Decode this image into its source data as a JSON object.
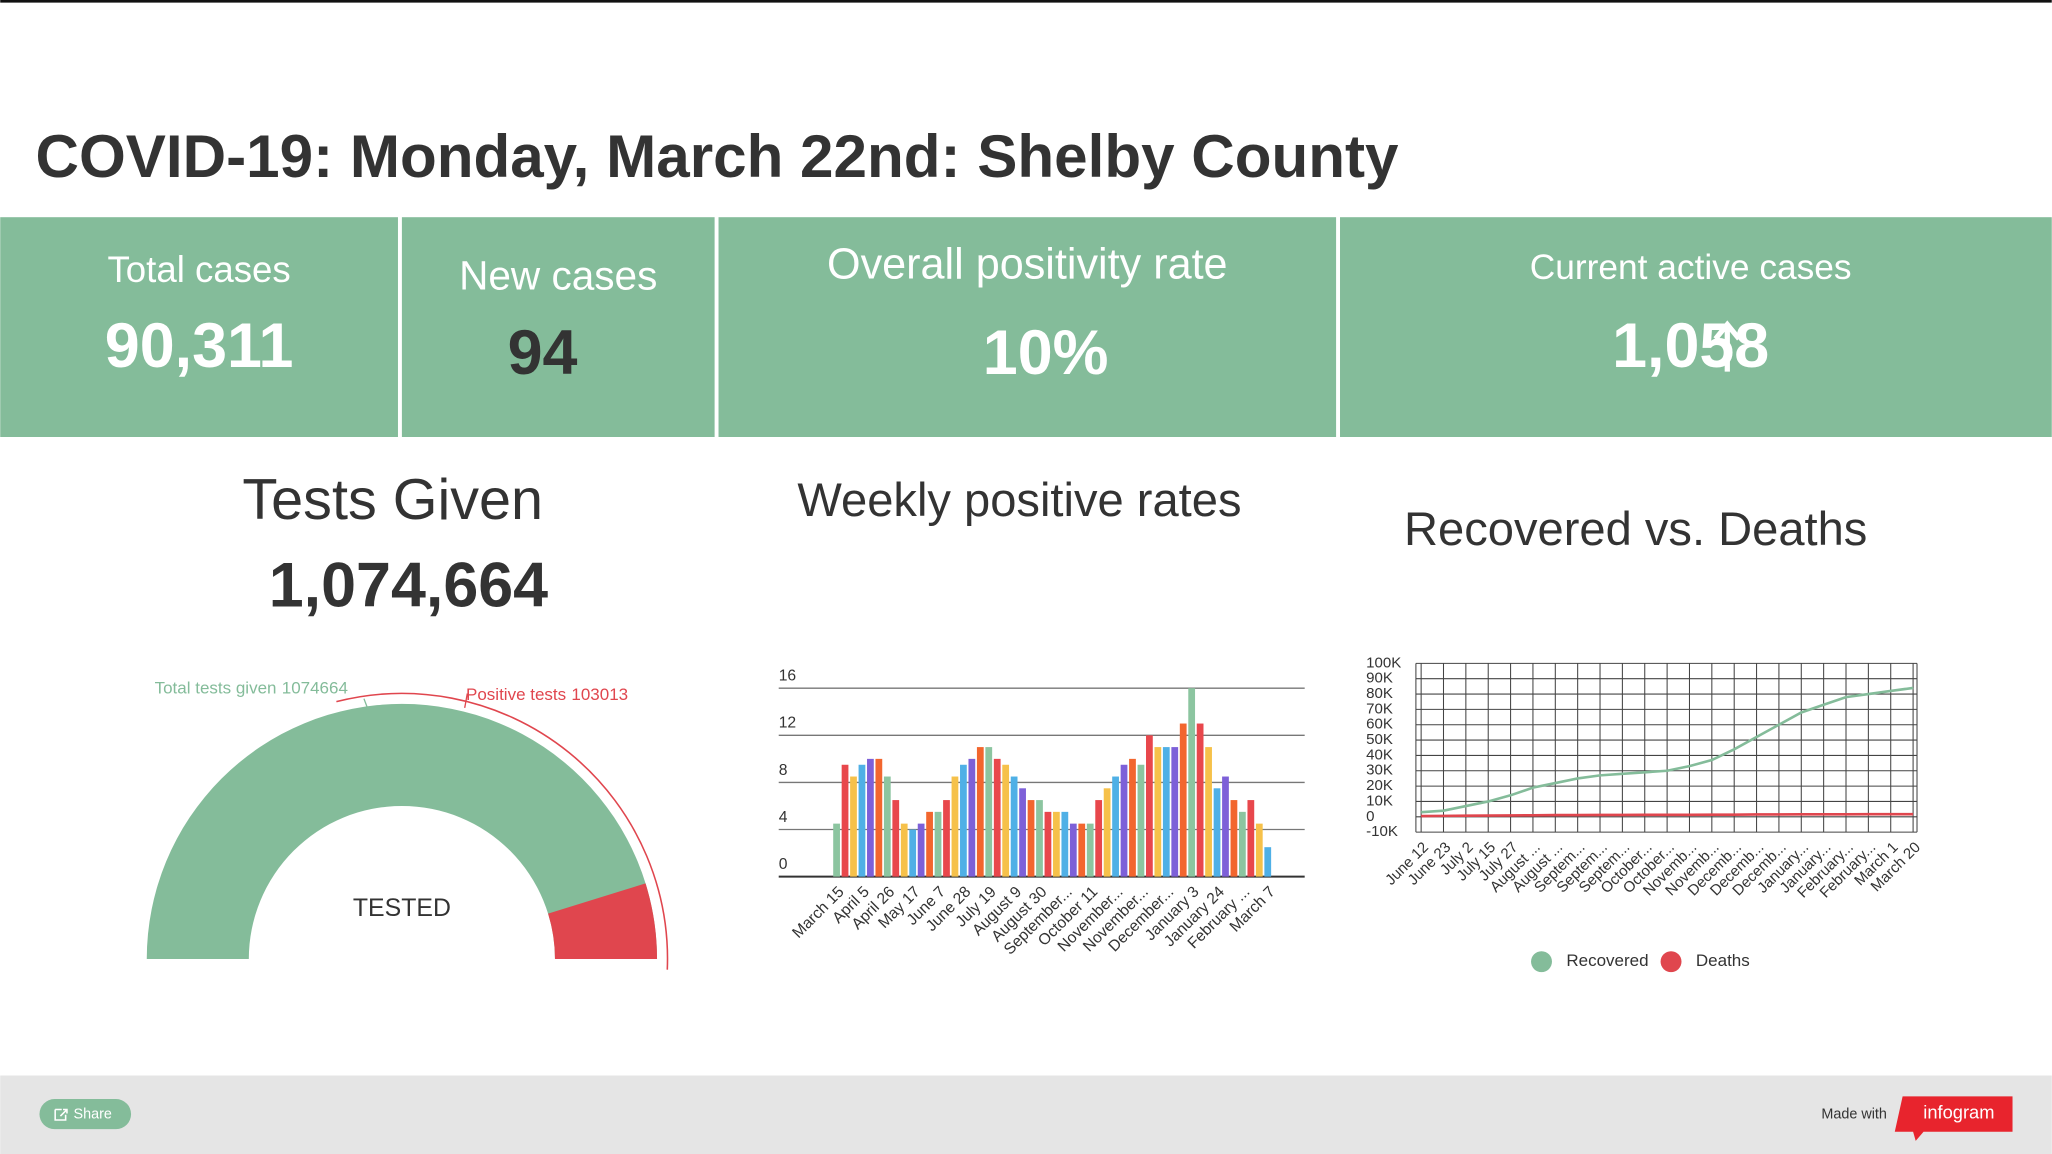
{
  "header": {
    "title": "COVID-19: Monday, March 22nd: Shelby County"
  },
  "kpis": [
    {
      "label": "Total cases",
      "value": "90,311",
      "value_color": "#ffffff"
    },
    {
      "label": "New cases",
      "value": "94",
      "value_color": "#333333"
    },
    {
      "label": "Overall positivity rate",
      "value": "10%",
      "value_color": "#ffffff"
    },
    {
      "label": "Current active cases",
      "value": "1,058",
      "value_color": "#ffffff"
    }
  ],
  "chart_data": [
    {
      "type": "gauge",
      "title": "Tests Given",
      "subtitle": "1,074,664",
      "center_label": "TESTED",
      "series": [
        {
          "name": "Total tests given",
          "color": "#84bc9a",
          "value": 1074664
        },
        {
          "name": "Positive tests",
          "color": "#e0464e",
          "value": 103013
        }
      ]
    },
    {
      "type": "bar",
      "title": "Weekly positive rates",
      "categories": [
        "March 15",
        null,
        null,
        "April 5",
        null,
        null,
        "April 26",
        null,
        null,
        "May 17",
        null,
        null,
        "June 7",
        null,
        null,
        "June 28",
        null,
        null,
        "July 19",
        null,
        null,
        "August 9",
        null,
        null,
        "August 30",
        null,
        null,
        "September...",
        null,
        null,
        "October 11",
        null,
        null,
        "November...",
        null,
        null,
        "November...",
        null,
        null,
        "December...",
        null,
        null,
        "January 3",
        null,
        null,
        "January 24",
        null,
        null,
        "February ...",
        null,
        null,
        "March 7"
      ],
      "values": [
        4.5,
        9.5,
        8.5,
        9.5,
        10,
        10,
        8.5,
        6.5,
        4.5,
        4,
        4.5,
        5.5,
        5.5,
        6.5,
        8.5,
        9.5,
        10,
        11,
        11,
        10,
        9.5,
        8.5,
        7.5,
        6.5,
        6.5,
        5.5,
        5.5,
        5.5,
        4.5,
        4.5,
        4.5,
        6.5,
        7.5,
        8.5,
        9.5,
        10,
        9.5,
        12,
        11,
        11,
        11,
        13,
        16,
        13,
        11,
        7.5,
        8.5,
        6.5,
        5.5,
        6.5,
        4.5,
        2.5
      ],
      "colors": [
        "#8cc5a0",
        "#e8474c",
        "#f6c14a",
        "#4fb0e6",
        "#7d60d8",
        "#f2662e"
      ],
      "ylim": [
        0,
        16
      ],
      "yticks": [
        0,
        4,
        8,
        12,
        16
      ],
      "grid": true
    },
    {
      "type": "line",
      "title": "Recovered vs. Deaths",
      "categories": [
        "June 12",
        "June 23",
        "July 2",
        "July 15",
        "July 27",
        "August ...",
        "August ...",
        "Septem...",
        "Septem...",
        "Septem...",
        "October...",
        "October...",
        "Novemb...",
        "Novemb...",
        "Decemb...",
        "Decemb...",
        "Decemb...",
        "January...",
        "January...",
        "February...",
        "February...",
        "March 1",
        "March 20"
      ],
      "series": [
        {
          "name": "Recovered",
          "color": "#84bc9a",
          "values": [
            3000,
            4000,
            7000,
            10000,
            14000,
            19000,
            22000,
            25000,
            27000,
            28000,
            29000,
            30000,
            33000,
            37000,
            44000,
            52000,
            60000,
            68000,
            73000,
            78000,
            80000,
            82000,
            84000
          ]
        },
        {
          "name": "Deaths",
          "color": "#e0464e",
          "values": [
            500,
            600,
            700,
            800,
            900,
            1000,
            1100,
            1100,
            1200,
            1200,
            1300,
            1300,
            1300,
            1400,
            1400,
            1500,
            1500,
            1600,
            1600,
            1600,
            1700,
            1700,
            1700
          ]
        }
      ],
      "ylim": [
        -10000,
        100000
      ],
      "yticks": [
        {
          "value": -10000,
          "label": "-10K"
        },
        0,
        {
          "value": 10000,
          "label": "10K"
        },
        {
          "value": 20000,
          "label": "20K"
        },
        {
          "value": 30000,
          "label": "30K"
        },
        {
          "value": 40000,
          "label": "40K"
        },
        {
          "value": 50000,
          "label": "50K"
        },
        {
          "value": 60000,
          "label": "60K"
        },
        {
          "value": 70000,
          "label": "70K"
        },
        {
          "value": 80000,
          "label": "80K"
        },
        {
          "value": 90000,
          "label": "90K"
        },
        {
          "value": 100000,
          "label": "100K"
        }
      ],
      "grid": true,
      "legend": "bottom"
    }
  ],
  "footer": {
    "share": "Share",
    "made_with": "Made with",
    "brand": "infogram"
  }
}
